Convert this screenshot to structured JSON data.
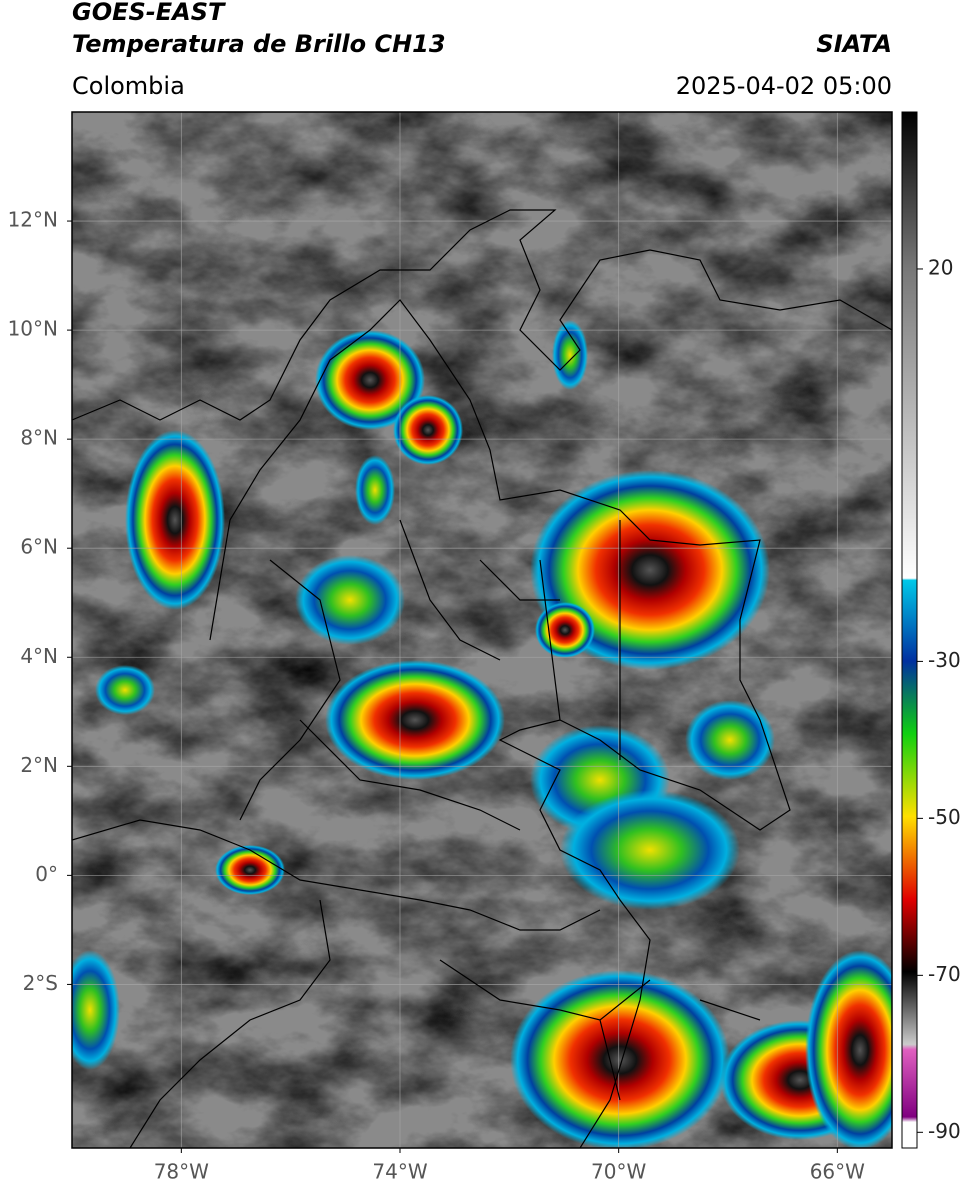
{
  "header": {
    "title": "GOES-EAST",
    "subtitle": "Temperatura de Brillo CH13",
    "source": "SIATA",
    "region": "Colombia",
    "datetime": "2025-04-02 05:00"
  },
  "map": {
    "xlim": [
      -80,
      -65
    ],
    "ylim": [
      -5,
      14
    ],
    "grid": true,
    "xticks": [
      {
        "value": -78,
        "label": "78°W"
      },
      {
        "value": -74,
        "label": "74°W"
      },
      {
        "value": -70,
        "label": "70°W"
      },
      {
        "value": -66,
        "label": "66°W"
      }
    ],
    "yticks": [
      {
        "value": 12,
        "label": "12°N"
      },
      {
        "value": 10,
        "label": "10°N"
      },
      {
        "value": 8,
        "label": "8°N"
      },
      {
        "value": 6,
        "label": "6°N"
      },
      {
        "value": 4,
        "label": "4°N"
      },
      {
        "value": 2,
        "label": "2°N"
      },
      {
        "value": 0,
        "label": "0°"
      },
      {
        "value": -2,
        "label": "2°S"
      }
    ]
  },
  "colorbar": {
    "lim": [
      -92,
      40
    ],
    "ticks": [
      20,
      -30,
      -50,
      -70,
      -90
    ]
  }
}
